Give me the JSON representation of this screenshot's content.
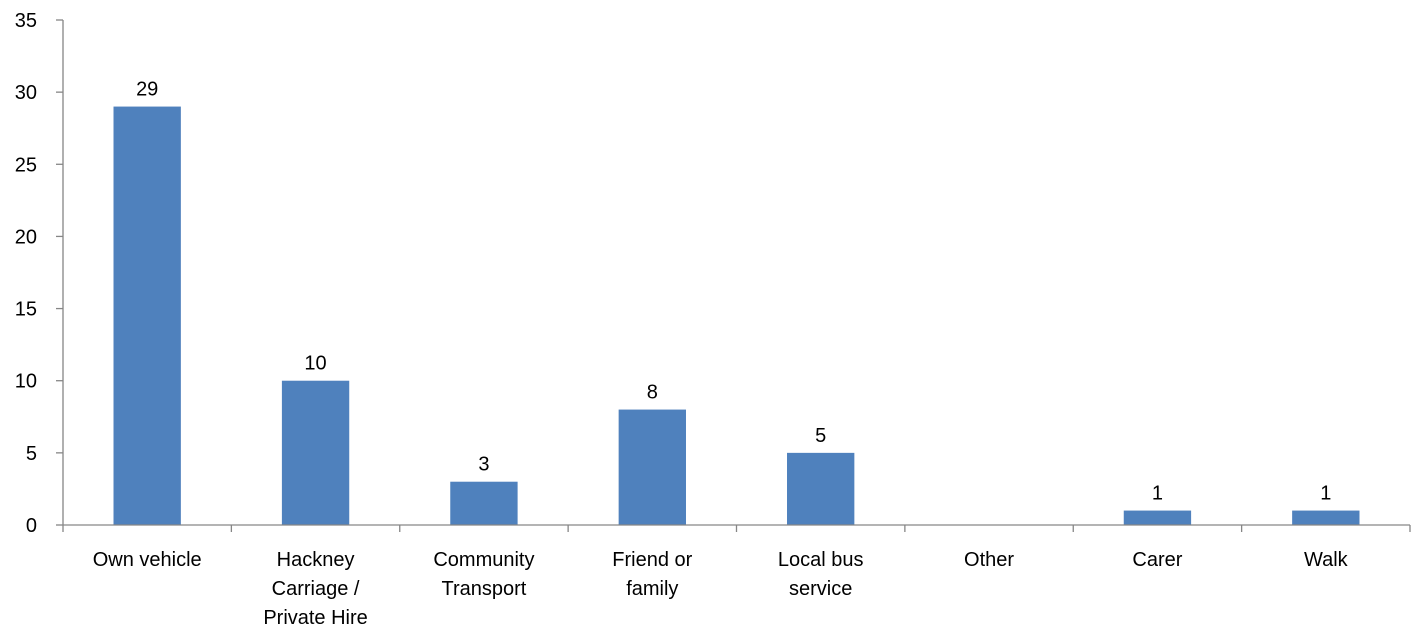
{
  "chart_data": {
    "type": "bar",
    "title": "",
    "xlabel": "",
    "ylabel": "",
    "ylim": [
      0,
      35
    ],
    "yticks": [
      0,
      5,
      10,
      15,
      20,
      25,
      30,
      35
    ],
    "grid": false,
    "legend": "none",
    "categories": [
      [
        "Own vehicle"
      ],
      [
        "Hackney",
        "Carriage /",
        "Private Hire"
      ],
      [
        "Community",
        "Transport"
      ],
      [
        "Friend or",
        "family"
      ],
      [
        "Local bus",
        "service"
      ],
      [
        "Other"
      ],
      [
        "Carer"
      ],
      [
        "Walk"
      ]
    ],
    "series": [
      {
        "values": [
          29,
          10,
          3,
          8,
          5,
          null,
          1,
          1
        ],
        "color": "#4f81bd"
      }
    ]
  }
}
